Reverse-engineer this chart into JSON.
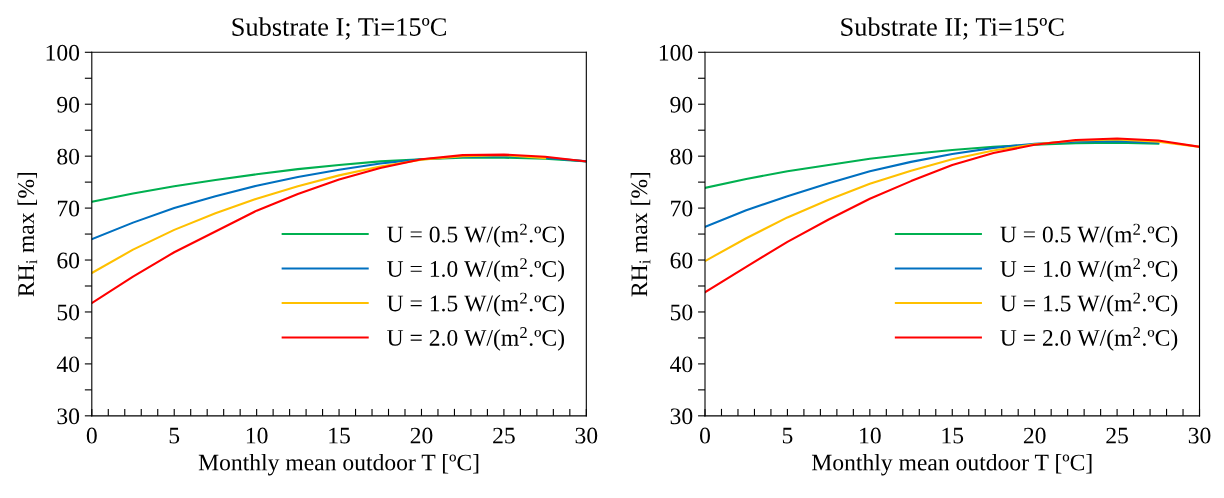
{
  "chart_data": [
    {
      "type": "line",
      "title": "Substrate I; Ti=15ºC",
      "xlabel": "Monthly mean outdoor T [ºC]",
      "ylabel": "RH$_{i}$ max [%]",
      "x": [
        0,
        2.5,
        5,
        7.5,
        10,
        12.5,
        15,
        17.5,
        20,
        22.5,
        25,
        27.5,
        30
      ],
      "series": [
        {
          "name": "U = 0.5 W/(m$^{2}$.ºC)",
          "color": "#00b050",
          "values": [
            71.2,
            72.8,
            74.2,
            75.4,
            76.5,
            77.5,
            78.3,
            79.0,
            79.4,
            79.7,
            79.7,
            79.5,
            79.0
          ]
        },
        {
          "name": "U = 1.0 W/(m$^{2}$.ºC)",
          "color": "#0070c0",
          "values": [
            64,
            67.2,
            70,
            72.3,
            74.3,
            76,
            77.4,
            78.6,
            79.4,
            79.9,
            80.0,
            79.7,
            79.0
          ]
        },
        {
          "name": "U = 1.5 W/(m$^{2}$.ºC)",
          "color": "#ffc000",
          "values": [
            57.5,
            62,
            65.8,
            69,
            71.8,
            74.2,
            76.3,
            78,
            79.3,
            80.0,
            80.2,
            79.6,
            null
          ]
        },
        {
          "name": "U = 2.0 W/(m$^{2}$.ºC)",
          "color": "#ff0000",
          "values": [
            51.7,
            56.8,
            61.5,
            65.5,
            69.5,
            72.7,
            75.5,
            77.7,
            79.4,
            80.2,
            80.3,
            79.9,
            79.0
          ]
        }
      ],
      "xlim": [
        0,
        30
      ],
      "ylim": [
        30,
        100
      ],
      "xticks": [
        0,
        {
          "value": 1,
          "label": null
        },
        {
          "value": 2,
          "label": null
        },
        {
          "value": 3,
          "label": null
        },
        {
          "value": 4,
          "label": null
        },
        5,
        {
          "value": 6,
          "label": null
        },
        {
          "value": 7,
          "label": null
        },
        {
          "value": 8,
          "label": null
        },
        {
          "value": 9,
          "label": null
        },
        10,
        {
          "value": 11,
          "label": null
        },
        {
          "value": 12,
          "label": null
        },
        {
          "value": 13,
          "label": null
        },
        {
          "value": 14,
          "label": null
        },
        15,
        {
          "value": 16,
          "label": null
        },
        {
          "value": 17,
          "label": null
        },
        {
          "value": 18,
          "label": null
        },
        {
          "value": 19,
          "label": null
        },
        20,
        {
          "value": 21,
          "label": null
        },
        {
          "value": 22,
          "label": null
        },
        {
          "value": 23,
          "label": null
        },
        {
          "value": 24,
          "label": null
        },
        25,
        {
          "value": 26,
          "label": null
        },
        {
          "value": 27,
          "label": null
        },
        {
          "value": 28,
          "label": null
        },
        {
          "value": 29,
          "label": null
        },
        30
      ],
      "yticks": [
        30,
        {
          "value": 35,
          "label": null
        },
        40,
        {
          "value": 45,
          "label": null
        },
        50,
        {
          "value": 55,
          "label": null
        },
        60,
        {
          "value": 65,
          "label": null
        },
        70,
        {
          "value": 75,
          "label": null
        },
        80,
        {
          "value": 85,
          "label": null
        },
        90,
        {
          "value": 95,
          "label": null
        },
        100
      ],
      "legend": "bottom right",
      "grid": false,
      "marker": "none",
      "line_style": "solid"
    },
    {
      "type": "line",
      "title": "Substrate II; Ti=15ºC",
      "xlabel": "Monthly mean outdoor T [ºC]",
      "ylabel": "RH$_{i}$ max [%]",
      "x": [
        0,
        2.5,
        5,
        7.5,
        10,
        12.5,
        15,
        17.5,
        20,
        22.5,
        25,
        27.5,
        30
      ],
      "series": [
        {
          "name": "U = 0.5 W/(m$^{2}$.ºC)",
          "color": "#00b050",
          "values": [
            73.9,
            75.6,
            77.1,
            78.3,
            79.5,
            80.4,
            81.2,
            81.8,
            82.2,
            82.5,
            82.6,
            82.4,
            null
          ]
        },
        {
          "name": "U = 1.0 W/(m$^{2}$.ºC)",
          "color": "#0070c0",
          "values": [
            66.4,
            69.6,
            72.3,
            74.8,
            77.1,
            78.9,
            80.4,
            81.6,
            82.4,
            82.8,
            82.9,
            82.6,
            null
          ]
        },
        {
          "name": "U = 1.5 W/(m$^{2}$.ºC)",
          "color": "#ffc000",
          "values": [
            59.8,
            64.2,
            68.2,
            71.6,
            74.7,
            77.2,
            79.4,
            81.1,
            82.3,
            83.0,
            83.2,
            82.8,
            81.8
          ]
        },
        {
          "name": "U = 2.0 W/(m$^{2}$.ºC)",
          "color": "#ff0000",
          "values": [
            53.8,
            58.7,
            63.5,
            67.8,
            71.8,
            75.2,
            78.3,
            80.6,
            82.2,
            83.1,
            83.4,
            83.0,
            81.8
          ]
        }
      ],
      "xlim": [
        0,
        30
      ],
      "ylim": [
        30,
        100
      ],
      "xticks": [
        0,
        {
          "value": 1,
          "label": null
        },
        {
          "value": 2,
          "label": null
        },
        {
          "value": 3,
          "label": null
        },
        {
          "value": 4,
          "label": null
        },
        5,
        {
          "value": 6,
          "label": null
        },
        {
          "value": 7,
          "label": null
        },
        {
          "value": 8,
          "label": null
        },
        {
          "value": 9,
          "label": null
        },
        10,
        {
          "value": 11,
          "label": null
        },
        {
          "value": 12,
          "label": null
        },
        {
          "value": 13,
          "label": null
        },
        {
          "value": 14,
          "label": null
        },
        15,
        {
          "value": 16,
          "label": null
        },
        {
          "value": 17,
          "label": null
        },
        {
          "value": 18,
          "label": null
        },
        {
          "value": 19,
          "label": null
        },
        20,
        {
          "value": 21,
          "label": null
        },
        {
          "value": 22,
          "label": null
        },
        {
          "value": 23,
          "label": null
        },
        {
          "value": 24,
          "label": null
        },
        25,
        {
          "value": 26,
          "label": null
        },
        {
          "value": 27,
          "label": null
        },
        {
          "value": 28,
          "label": null
        },
        {
          "value": 29,
          "label": null
        },
        30
      ],
      "yticks": [
        30,
        {
          "value": 35,
          "label": null
        },
        40,
        {
          "value": 45,
          "label": null
        },
        50,
        {
          "value": 55,
          "label": null
        },
        60,
        {
          "value": 65,
          "label": null
        },
        70,
        {
          "value": 75,
          "label": null
        },
        80,
        {
          "value": 85,
          "label": null
        },
        90,
        {
          "value": 95,
          "label": null
        },
        100
      ],
      "legend": "bottom right",
      "grid": false,
      "marker": "none",
      "line_style": "solid"
    }
  ]
}
